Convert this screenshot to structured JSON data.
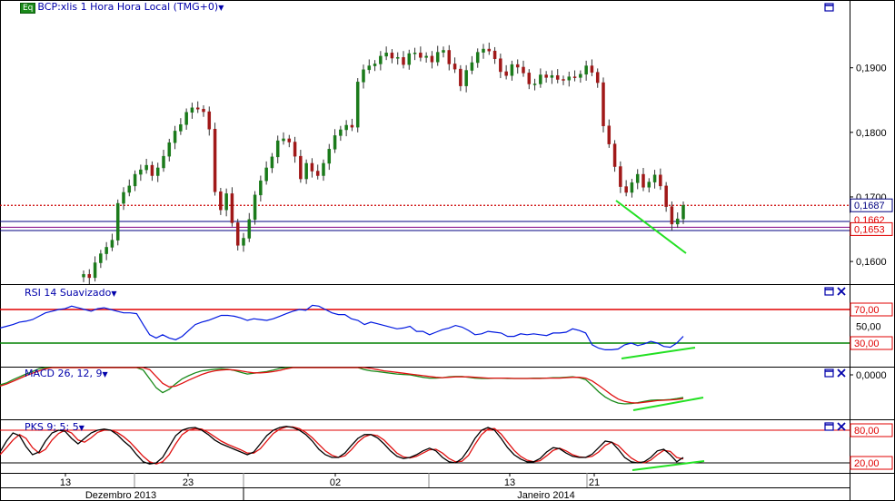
{
  "header": {
    "badge": "Eq",
    "title": "BCP:xlis 1 Hora Hora Local (TMG+0)"
  },
  "colors": {
    "up": "#1a7a1a",
    "down": "#a01818",
    "rsi": "#0018e0",
    "macd": "#1a8a1a",
    "signal": "#e01010",
    "pks_k": "#000000",
    "pks_d": "#e01010",
    "divergence": "#22e022",
    "level_high": "#e00000",
    "level_low": "#008000",
    "price_line": "#cc0000",
    "axis_text": "#000000",
    "panel_title": "#0000aa"
  },
  "chart_data": [
    {
      "type": "line",
      "name": "price",
      "title": "BCP:xlis 1 Hora Hora Local (TMG+0)",
      "y_ticks": [
        "0,1900",
        "0,1800",
        "0,1700",
        "0,1600"
      ],
      "y_tick_values": [
        0.19,
        0.18,
        0.17,
        0.16
      ],
      "ylim": [
        0.1565,
        0.2005
      ],
      "x_ticks": [
        "13",
        "23",
        "02",
        "13",
        "21"
      ],
      "x_groups": [
        "Dezembro 2013",
        "Janeiro 2014"
      ],
      "last_price_label": "0,1687",
      "last_price": 0.1687,
      "extra_labels": [
        "0,1662",
        "0,1653"
      ],
      "extra_levels": [
        0.1662,
        0.1653,
        0.1648
      ],
      "closes": [
        0.158,
        0.1575,
        0.1598,
        0.1612,
        0.1622,
        0.1633,
        0.169,
        0.1707,
        0.1717,
        0.1735,
        0.1742,
        0.1749,
        0.1733,
        0.1745,
        0.1763,
        0.1784,
        0.1802,
        0.1812,
        0.1831,
        0.1838,
        0.1836,
        0.1832,
        0.1805,
        0.1708,
        0.168,
        0.1705,
        0.166,
        0.1625,
        0.1636,
        0.1665,
        0.1703,
        0.1725,
        0.1745,
        0.1762,
        0.1787,
        0.179,
        0.1785,
        0.1763,
        0.1728,
        0.1752,
        0.174,
        0.1733,
        0.1752,
        0.1774,
        0.1795,
        0.1804,
        0.1811,
        0.1808,
        0.1878,
        0.1897,
        0.1903,
        0.1906,
        0.1918,
        0.1923,
        0.1915,
        0.1916,
        0.1905,
        0.1922,
        0.1923,
        0.1916,
        0.1918,
        0.1909,
        0.1924,
        0.1927,
        0.1906,
        0.1898,
        0.1872,
        0.1896,
        0.1908,
        0.1924,
        0.1929,
        0.1926,
        0.1914,
        0.1894,
        0.1888,
        0.1905,
        0.1901,
        0.1892,
        0.1875,
        0.1875,
        0.1889,
        0.1885,
        0.1888,
        0.1882,
        0.1881,
        0.1886,
        0.1885,
        0.189,
        0.1903,
        0.1893,
        0.1877,
        0.181,
        0.1782,
        0.1747,
        0.1716,
        0.1707,
        0.1722,
        0.1735,
        0.1715,
        0.1723,
        0.1734,
        0.1717,
        0.1685,
        0.1658,
        0.1666,
        0.1687
      ]
    },
    {
      "type": "line",
      "name": "RSI 14 Suavizado",
      "title": "RSI 14 Suavizado",
      "ylim": [
        0,
        100
      ],
      "levels": [
        70,
        30
      ],
      "level_labels": [
        "70,00",
        "30,00"
      ],
      "mid_label": "50,00",
      "values": [
        48,
        50,
        52,
        55,
        56,
        58,
        62,
        66,
        68,
        70,
        71,
        74,
        72,
        70,
        68,
        71,
        72,
        70,
        68,
        66,
        66,
        65,
        52,
        40,
        36,
        40,
        36,
        34,
        38,
        45,
        52,
        55,
        57,
        60,
        63,
        63,
        62,
        60,
        57,
        59,
        58,
        57,
        59,
        62,
        65,
        68,
        70,
        69,
        75,
        74,
        70,
        66,
        64,
        64,
        59,
        57,
        52,
        55,
        53,
        51,
        49,
        47,
        48,
        50,
        44,
        44,
        40,
        43,
        46,
        48,
        51,
        49,
        45,
        40,
        41,
        44,
        43,
        42,
        38,
        38,
        41,
        40,
        41,
        40,
        39,
        42,
        42,
        43,
        47,
        45,
        42,
        28,
        24,
        22,
        22,
        23,
        28,
        30,
        27,
        29,
        32,
        30,
        26,
        25,
        30,
        38
      ]
    },
    {
      "type": "line",
      "name": "MACD 26, 12, 9",
      "title": "MACD 26, 12, 9",
      "y_ticks": [
        "0,0000"
      ],
      "series": [
        {
          "name": "MACD",
          "values": [
            -0.0025,
            -0.002,
            -0.0012,
            -0.0005,
            0.0002,
            0.0008,
            0.0015,
            0.002,
            0.0024,
            0.0027,
            0.003,
            0.0033,
            0.0034,
            0.0033,
            0.0033,
            0.0034,
            0.0035,
            0.0036,
            0.0036,
            0.0036,
            0.0034,
            0.003,
            0.0012,
            -0.001,
            -0.0032,
            -0.0044,
            -0.0036,
            -0.0022,
            -0.001,
            -0.0002,
            0.0005,
            0.001,
            0.0012,
            0.0014,
            0.0015,
            0.0014,
            0.0011,
            0.0006,
            0.0002,
            0.0004,
            0.0006,
            0.0008,
            0.0012,
            0.0016,
            0.002,
            0.0025,
            0.003,
            0.0034,
            0.0038,
            0.0041,
            0.004,
            0.0037,
            0.0033,
            0.0028,
            0.0023,
            0.0018,
            0.0013,
            0.001,
            0.0008,
            0.0006,
            0.0004,
            0.0002,
            0.0001,
            0.0,
            -0.0003,
            -0.0006,
            -0.0008,
            -0.0008,
            -0.0007,
            -0.0005,
            -0.0004,
            -0.0004,
            -0.0006,
            -0.0008,
            -0.0009,
            -0.0009,
            -0.0008,
            -0.0008,
            -0.0009,
            -0.0009,
            -0.0009,
            -0.0009,
            -0.0008,
            -0.0008,
            -0.0008,
            -0.0007,
            -0.0007,
            -0.0006,
            -0.0005,
            -0.0007,
            -0.0012,
            -0.0026,
            -0.0042,
            -0.0055,
            -0.0064,
            -0.007,
            -0.0072,
            -0.0071,
            -0.0069,
            -0.0066,
            -0.0063,
            -0.0062,
            -0.0062,
            -0.0061,
            -0.0059,
            -0.0056
          ]
        },
        {
          "name": "Signal",
          "values": [
            -0.0028,
            -0.0023,
            -0.0016,
            -0.0009,
            -0.0002,
            0.0004,
            0.001,
            0.0015,
            0.0019,
            0.0023,
            0.0026,
            0.0029,
            0.0031,
            0.0032,
            0.0032,
            0.0033,
            0.0034,
            0.0034,
            0.0035,
            0.0035,
            0.0035,
            0.0033,
            0.0026,
            0.0013,
            -0.0004,
            -0.0021,
            -0.003,
            -0.0028,
            -0.0021,
            -0.0013,
            -0.0006,
            0.0001,
            0.0006,
            0.001,
            0.0012,
            0.0013,
            0.0012,
            0.001,
            0.0007,
            0.0005,
            0.0005,
            0.0006,
            0.0008,
            0.0011,
            0.0015,
            0.0019,
            0.0024,
            0.0028,
            0.0032,
            0.0036,
            0.0038,
            0.0038,
            0.0036,
            0.0033,
            0.0029,
            0.0024,
            0.002,
            0.0016,
            0.0013,
            0.001,
            0.0008,
            0.0006,
            0.0004,
            0.0002,
            0.0,
            -0.0002,
            -0.0004,
            -0.0006,
            -0.0007,
            -0.0006,
            -0.0005,
            -0.0005,
            -0.0005,
            -0.0006,
            -0.0007,
            -0.0008,
            -0.0008,
            -0.0008,
            -0.0008,
            -0.0009,
            -0.0009,
            -0.0009,
            -0.0009,
            -0.0009,
            -0.0008,
            -0.0008,
            -0.0008,
            -0.0007,
            -0.0006,
            -0.0006,
            -0.0008,
            -0.0015,
            -0.0026,
            -0.0038,
            -0.005,
            -0.006,
            -0.0066,
            -0.0069,
            -0.007,
            -0.0068,
            -0.0066,
            -0.0064,
            -0.0063,
            -0.0062,
            -0.0061,
            -0.0059
          ]
        }
      ]
    },
    {
      "type": "line",
      "name": "PKS 9; 5; 5",
      "title": "PKS 9; 5; 5",
      "ylim": [
        0,
        100
      ],
      "levels": [
        80,
        20
      ],
      "level_labels": [
        "80,00",
        "20,00"
      ],
      "series": [
        {
          "name": "%K",
          "values": [
            40,
            60,
            75,
            70,
            50,
            35,
            40,
            60,
            75,
            80,
            78,
            65,
            55,
            65,
            75,
            80,
            82,
            80,
            72,
            60,
            50,
            35,
            22,
            18,
            20,
            30,
            50,
            70,
            80,
            84,
            85,
            80,
            72,
            62,
            55,
            50,
            45,
            40,
            35,
            40,
            55,
            70,
            80,
            85,
            87,
            85,
            80,
            72,
            60,
            45,
            35,
            30,
            30,
            38,
            52,
            65,
            72,
            72,
            66,
            55,
            42,
            32,
            28,
            30,
            35,
            42,
            47,
            42,
            30,
            22,
            20,
            28,
            45,
            65,
            80,
            85,
            80,
            65,
            48,
            35,
            27,
            22,
            22,
            28,
            40,
            48,
            46,
            38,
            32,
            30,
            30,
            36,
            48,
            60,
            58,
            45,
            30,
            22,
            20,
            22,
            30,
            42,
            45,
            35,
            22,
            30
          ]
        },
        {
          "name": "%D",
          "values": [
            35,
            48,
            62,
            72,
            65,
            48,
            38,
            45,
            62,
            74,
            80,
            75,
            62,
            58,
            66,
            76,
            80,
            80,
            76,
            68,
            58,
            45,
            32,
            22,
            18,
            22,
            35,
            55,
            72,
            80,
            83,
            82,
            76,
            68,
            60,
            54,
            49,
            44,
            38,
            38,
            46,
            60,
            74,
            82,
            86,
            86,
            83,
            76,
            66,
            54,
            42,
            34,
            30,
            33,
            44,
            58,
            68,
            72,
            70,
            62,
            50,
            38,
            31,
            29,
            32,
            38,
            44,
            45,
            38,
            28,
            22,
            23,
            34,
            54,
            72,
            82,
            83,
            73,
            58,
            43,
            32,
            25,
            22,
            24,
            33,
            43,
            47,
            42,
            35,
            31,
            30,
            32,
            40,
            52,
            58,
            52,
            40,
            29,
            22,
            20,
            25,
            35,
            43,
            41,
            30,
            27
          ]
        }
      ]
    }
  ]
}
